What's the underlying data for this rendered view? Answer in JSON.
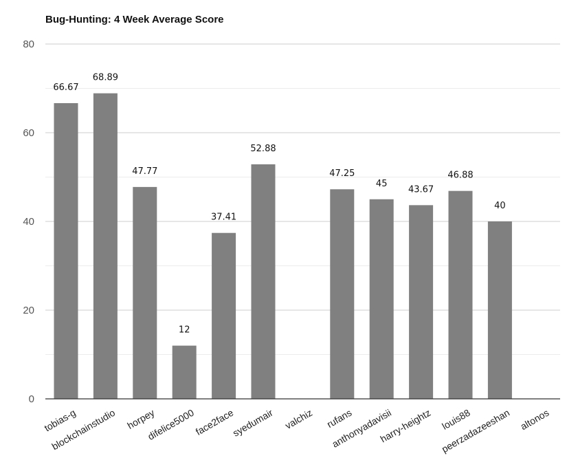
{
  "chart_data": {
    "type": "bar",
    "title": "Bug-Hunting: 4 Week Average Score",
    "xlabel": "",
    "ylabel": "",
    "categories": [
      "tobias-g",
      "blockchainstudio",
      "horpey",
      "difelice5000",
      "face2face",
      "syedumair",
      "valchiz",
      "rufans",
      "anthonyadavisii",
      "harry-heightz",
      "louis88",
      "peerzadazeeshan",
      "altonos"
    ],
    "values": [
      66.67,
      68.89,
      47.77,
      12,
      37.41,
      52.88,
      0,
      47.25,
      45,
      43.67,
      46.88,
      40,
      0
    ],
    "data_labels": [
      "66.67",
      "68.89",
      "47.77",
      "12",
      "37.41",
      "52.88",
      "",
      "47.25",
      "45",
      "43.67",
      "46.88",
      "40",
      ""
    ],
    "ylim": [
      0,
      80
    ],
    "yticks": [
      "0",
      "20",
      "40",
      "60",
      "80"
    ],
    "grid": true,
    "legend": "none",
    "bar_color": "#808080",
    "grid_color": "#cccccc",
    "minor_grid_color": "#ececec"
  }
}
